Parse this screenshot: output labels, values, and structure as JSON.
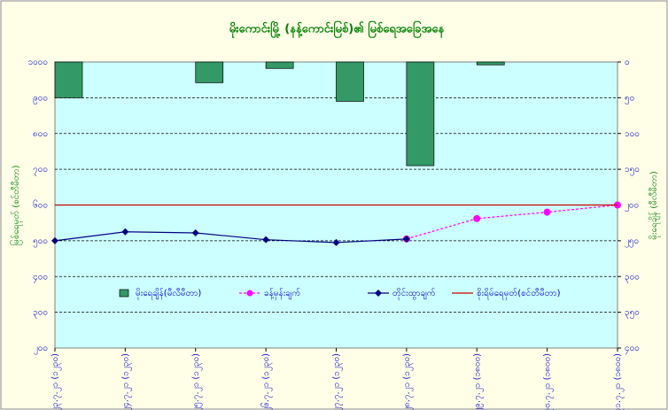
{
  "chart_data": {
    "type": "combo",
    "title": "မိုးကောင်းမြို့ (နန့်ကောင်းမြစ်)၏ မြစ်ရေအခြေအနေ",
    "ylabel": "မြစ်ရေမှတ် (စင်တီမီတာ)",
    "y2label": "မိုးရေချိန် (မီလီမီတာ)",
    "categories": [
      "၂၃.၇.၂၁ (၁၂၃၀)",
      "၂၄.၇.၂၁ (၁၂၃၀)",
      "၂၅.၇.၂၁ (၁၂၃၀)",
      "၂၆.၇.၂၁ (၁၂၃၀)",
      "၂၇.၇.၂၁ (၁၂၃၀)",
      "၂၈.၇.၂၁ (၁၂၃၀)",
      "၂၉.၇.၂၁ (၁၈၀၀)",
      "၃၀.၇.၂၁ (၁၈၀၀)",
      "၃၁.၇.၂၁ (၁၈၀၀)"
    ],
    "ylim": [
      200,
      1000
    ],
    "yticks": [
      {
        "value": 200,
        "label": "၂၀၀"
      },
      {
        "value": 300,
        "label": "၃၀၀"
      },
      {
        "value": 400,
        "label": "၄၀၀"
      },
      {
        "value": 500,
        "label": "၅၀၀"
      },
      {
        "value": 600,
        "label": "၆၀၀"
      },
      {
        "value": 700,
        "label": "၇၀၀"
      },
      {
        "value": 800,
        "label": "၈၀၀"
      },
      {
        "value": 900,
        "label": "၉၀၀"
      },
      {
        "value": 1000,
        "label": "၁၀၀၀"
      }
    ],
    "y2lim": [
      400,
      0
    ],
    "y2ticks": [
      {
        "value": 0,
        "label": "၀"
      },
      {
        "value": 50,
        "label": "၅၀"
      },
      {
        "value": 100,
        "label": "၁၀၀"
      },
      {
        "value": 150,
        "label": "၁၅၀"
      },
      {
        "value": 200,
        "label": "၂၀၀"
      },
      {
        "value": 250,
        "label": "၂၅၀"
      },
      {
        "value": 300,
        "label": "၃၀၀"
      },
      {
        "value": 350,
        "label": "၃၅၀"
      },
      {
        "value": 400,
        "label": "၄၀၀"
      }
    ],
    "grid": true,
    "series": [
      {
        "name": "မိုးရေချိန်(မီလီမီတာ)",
        "type": "bar",
        "axis": "y2",
        "color": "#339966",
        "values": [
          50,
          null,
          29,
          9,
          55,
          145,
          4,
          null,
          null
        ]
      },
      {
        "name": "ခန့်မှန်းချက်",
        "type": "dashed",
        "color": "#ff00ff",
        "values": [
          null,
          null,
          null,
          null,
          null,
          505,
          562,
          580,
          600
        ]
      },
      {
        "name": "တိုင်းထွာချက်",
        "type": "line",
        "color": "#000080",
        "values": [
          500,
          525,
          522,
          503,
          495,
          505,
          null,
          null,
          null
        ]
      },
      {
        "name": "စိုးရိမ်ရေမှတ်(စင်တီမီတာ)",
        "type": "level",
        "color": "#cc0000",
        "values": [
          600,
          600,
          600,
          600,
          600,
          600,
          600,
          600,
          600
        ]
      }
    ]
  }
}
